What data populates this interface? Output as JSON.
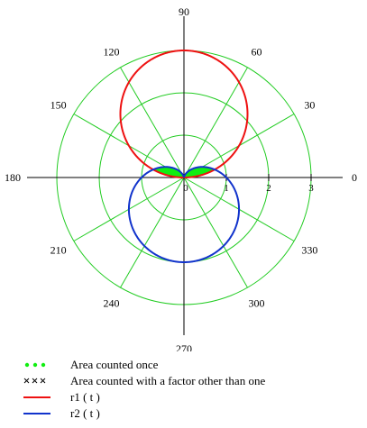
{
  "chart_data": {
    "type": "polar",
    "angle_ticks": [
      {
        "deg": 0,
        "label": "0"
      },
      {
        "deg": 30,
        "label": "30"
      },
      {
        "deg": 60,
        "label": "60"
      },
      {
        "deg": 90,
        "label": "90"
      },
      {
        "deg": 120,
        "label": "120"
      },
      {
        "deg": 150,
        "label": "150"
      },
      {
        "deg": 180,
        "label": "180"
      },
      {
        "deg": 210,
        "label": "210"
      },
      {
        "deg": 240,
        "label": "240"
      },
      {
        "deg": 270,
        "label": "270"
      },
      {
        "deg": 300,
        "label": "300"
      },
      {
        "deg": 330,
        "label": "330"
      }
    ],
    "radial_ticks": [
      {
        "value": 0,
        "label": "0"
      },
      {
        "value": 1,
        "label": "1"
      },
      {
        "value": 2,
        "label": "2"
      },
      {
        "value": 3,
        "label": "3"
      }
    ],
    "r_max": 3,
    "grid": true,
    "grid_color": "#22cc22",
    "series": [
      {
        "name": "r1 ( t )",
        "formula": "3*sin(theta)",
        "range": [
          0,
          180
        ],
        "color": "#ee1111"
      },
      {
        "name": "r2 ( t )",
        "formula": "1 - sin(theta)",
        "range": [
          0,
          360
        ],
        "color": "#1133cc"
      }
    ],
    "shaded_regions": [
      {
        "name": "Area counted once",
        "color": "#11ee11",
        "marker": "dot"
      },
      {
        "name": "Area counted with a factor other than one",
        "color": "#000000",
        "marker": "x"
      }
    ],
    "legend_position": "bottom-left"
  }
}
